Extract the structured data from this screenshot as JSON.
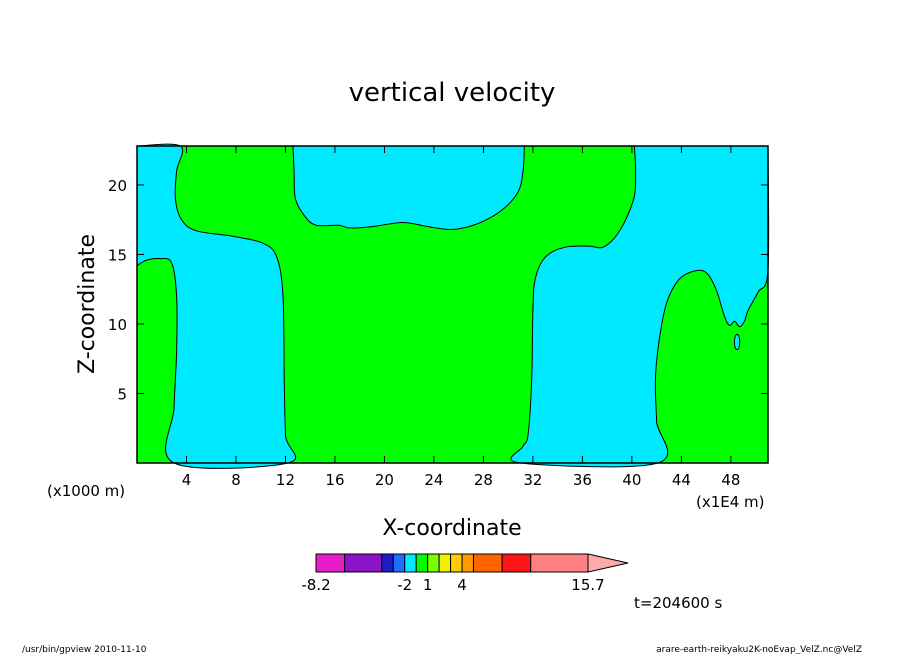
{
  "chart_data": {
    "type": "heatmap",
    "title": "vertical velocity",
    "xlabel": "X-coordinate",
    "ylabel": "Z-coordinate",
    "x_unit_left": "(x1000 m)",
    "y_unit_right": "(x1E4 m)",
    "xlim": [
      0,
      51
    ],
    "ylim": [
      0,
      22.8
    ],
    "x_ticks": [
      4,
      8,
      12,
      16,
      20,
      24,
      28,
      32,
      36,
      40,
      44,
      48
    ],
    "y_ticks": [
      5,
      10,
      15,
      20
    ],
    "regions": [
      {
        "name": "negative (-2 to 1)",
        "color": "#00eaff",
        "points": [
          [
            0,
            22.8
          ],
          [
            3.5,
            22.8
          ],
          [
            3.2,
            21
          ],
          [
            3.1,
            19
          ],
          [
            3.6,
            17.5
          ],
          [
            4.8,
            16.7
          ],
          [
            7.8,
            16.3
          ],
          [
            10.2,
            15.8
          ],
          [
            11.3,
            14.8
          ],
          [
            11.8,
            12
          ],
          [
            11.9,
            6
          ],
          [
            12.0,
            2
          ],
          [
            12.2,
            0
          ],
          [
            3.0,
            0
          ],
          [
            3.0,
            4
          ],
          [
            3.2,
            8
          ],
          [
            3.2,
            12
          ],
          [
            2.8,
            14.4
          ],
          [
            1.8,
            14.7
          ],
          [
            0.8,
            14.6
          ],
          [
            0,
            14.2
          ]
        ]
      },
      {
        "name": "negative (-2 to 1)",
        "color": "#00eaff",
        "points": [
          [
            12.6,
            22.8
          ],
          [
            12.7,
            21
          ],
          [
            12.8,
            19
          ],
          [
            13.6,
            17.7
          ],
          [
            14.5,
            17.1
          ],
          [
            16.3,
            17.1
          ],
          [
            17.2,
            16.9
          ],
          [
            19,
            17.0
          ],
          [
            21.5,
            17.3
          ],
          [
            23.5,
            17.0
          ],
          [
            25.5,
            16.8
          ],
          [
            27.5,
            17.2
          ],
          [
            29.5,
            18.2
          ],
          [
            30.8,
            19.5
          ],
          [
            31.2,
            21
          ],
          [
            31.3,
            22.8
          ]
        ]
      },
      {
        "name": "negative (-2 to 1)",
        "color": "#00eaff",
        "points": [
          [
            40.2,
            22.8
          ],
          [
            40.3,
            21
          ],
          [
            40.2,
            19.2
          ],
          [
            39.5,
            17.5
          ],
          [
            38.6,
            16.2
          ],
          [
            37.6,
            15.5
          ],
          [
            36.5,
            15.6
          ],
          [
            34.5,
            15.5
          ],
          [
            33.0,
            14.8
          ],
          [
            32.2,
            13.3
          ],
          [
            32.0,
            11
          ],
          [
            31.9,
            6
          ],
          [
            31.6,
            2
          ],
          [
            31.2,
            1.2
          ],
          [
            31.0,
            0
          ],
          [
            42.1,
            0
          ],
          [
            42.0,
            3
          ],
          [
            41.9,
            6
          ],
          [
            42.2,
            8.8
          ],
          [
            42.8,
            11.5
          ],
          [
            43.8,
            13.2
          ],
          [
            45,
            13.8
          ],
          [
            46.0,
            13.7
          ],
          [
            46.8,
            12.5
          ],
          [
            47.5,
            10.5
          ],
          [
            47.9,
            9.9
          ],
          [
            48.3,
            10.2
          ],
          [
            48.7,
            9.8
          ],
          [
            49.1,
            10.2
          ],
          [
            49.4,
            11.0
          ],
          [
            50.2,
            12.3
          ],
          [
            51,
            13.9
          ],
          [
            51,
            22.8
          ]
        ]
      }
    ],
    "series": [
      {
        "name": "negative (-2 to 1)",
        "ellipse": {
          "cx": 48.5,
          "cy": 8.7,
          "rx": 0.22,
          "ry": 0.55
        }
      }
    ],
    "background_color": "#00ff00",
    "legend": {
      "placement": "bottom",
      "tick_labels": [
        "-8.2",
        "-2",
        "1",
        "4",
        "15.7"
      ],
      "bins": [
        {
          "color": "#e61ec8",
          "weight": 1.0
        },
        {
          "color": "#8c14c8",
          "weight": 1.3
        },
        {
          "color": "#1e1ec8",
          "weight": 0.4
        },
        {
          "color": "#1e6eff",
          "weight": 0.4
        },
        {
          "color": "#00eaff",
          "weight": 0.4
        },
        {
          "color": "#00ff00",
          "weight": 0.4
        },
        {
          "color": "#78ff00",
          "weight": 0.4
        },
        {
          "color": "#f0f000",
          "weight": 0.4
        },
        {
          "color": "#ffcc00",
          "weight": 0.4
        },
        {
          "color": "#ff9900",
          "weight": 0.4
        },
        {
          "color": "#ff6400",
          "weight": 1.0
        },
        {
          "color": "#ff1414",
          "weight": 1.0
        },
        {
          "color": "#ff8080",
          "weight": 2.0
        }
      ],
      "arrow_color": "#ffaaaa"
    },
    "time_label": "t=204600 s"
  },
  "footer": {
    "left": "/usr/bin/gpview  2010-11-10",
    "right": "arare-earth-reikyaku2K-noEvap_VelZ.nc@VelZ"
  }
}
